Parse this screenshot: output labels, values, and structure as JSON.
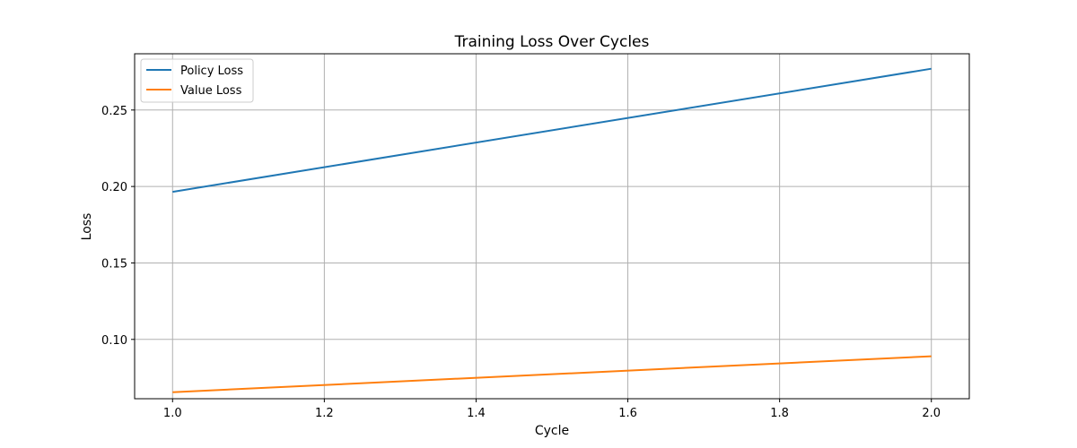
{
  "chart_data": {
    "type": "line",
    "title": "Training Loss Over Cycles",
    "xlabel": "Cycle",
    "ylabel": "Loss",
    "x": [
      1.0,
      2.0
    ],
    "series": [
      {
        "name": "Policy Loss",
        "color": "#1f77b4",
        "values": [
          0.1965,
          0.277
        ]
      },
      {
        "name": "Value Loss",
        "color": "#ff7f0e",
        "values": [
          0.0655,
          0.089
        ]
      }
    ],
    "xlim": [
      0.95,
      2.05
    ],
    "ylim": [
      0.0612,
      0.2868
    ],
    "xticks": [
      1.0,
      1.2,
      1.4,
      1.6,
      1.8,
      2.0
    ],
    "xtick_labels": [
      "1.0",
      "1.2",
      "1.4",
      "1.6",
      "1.8",
      "2.0"
    ],
    "yticks": [
      0.1,
      0.15,
      0.2,
      0.25
    ],
    "ytick_labels": [
      "0.10",
      "0.15",
      "0.20",
      "0.25"
    ],
    "grid": true,
    "legend_position": "top-left"
  }
}
